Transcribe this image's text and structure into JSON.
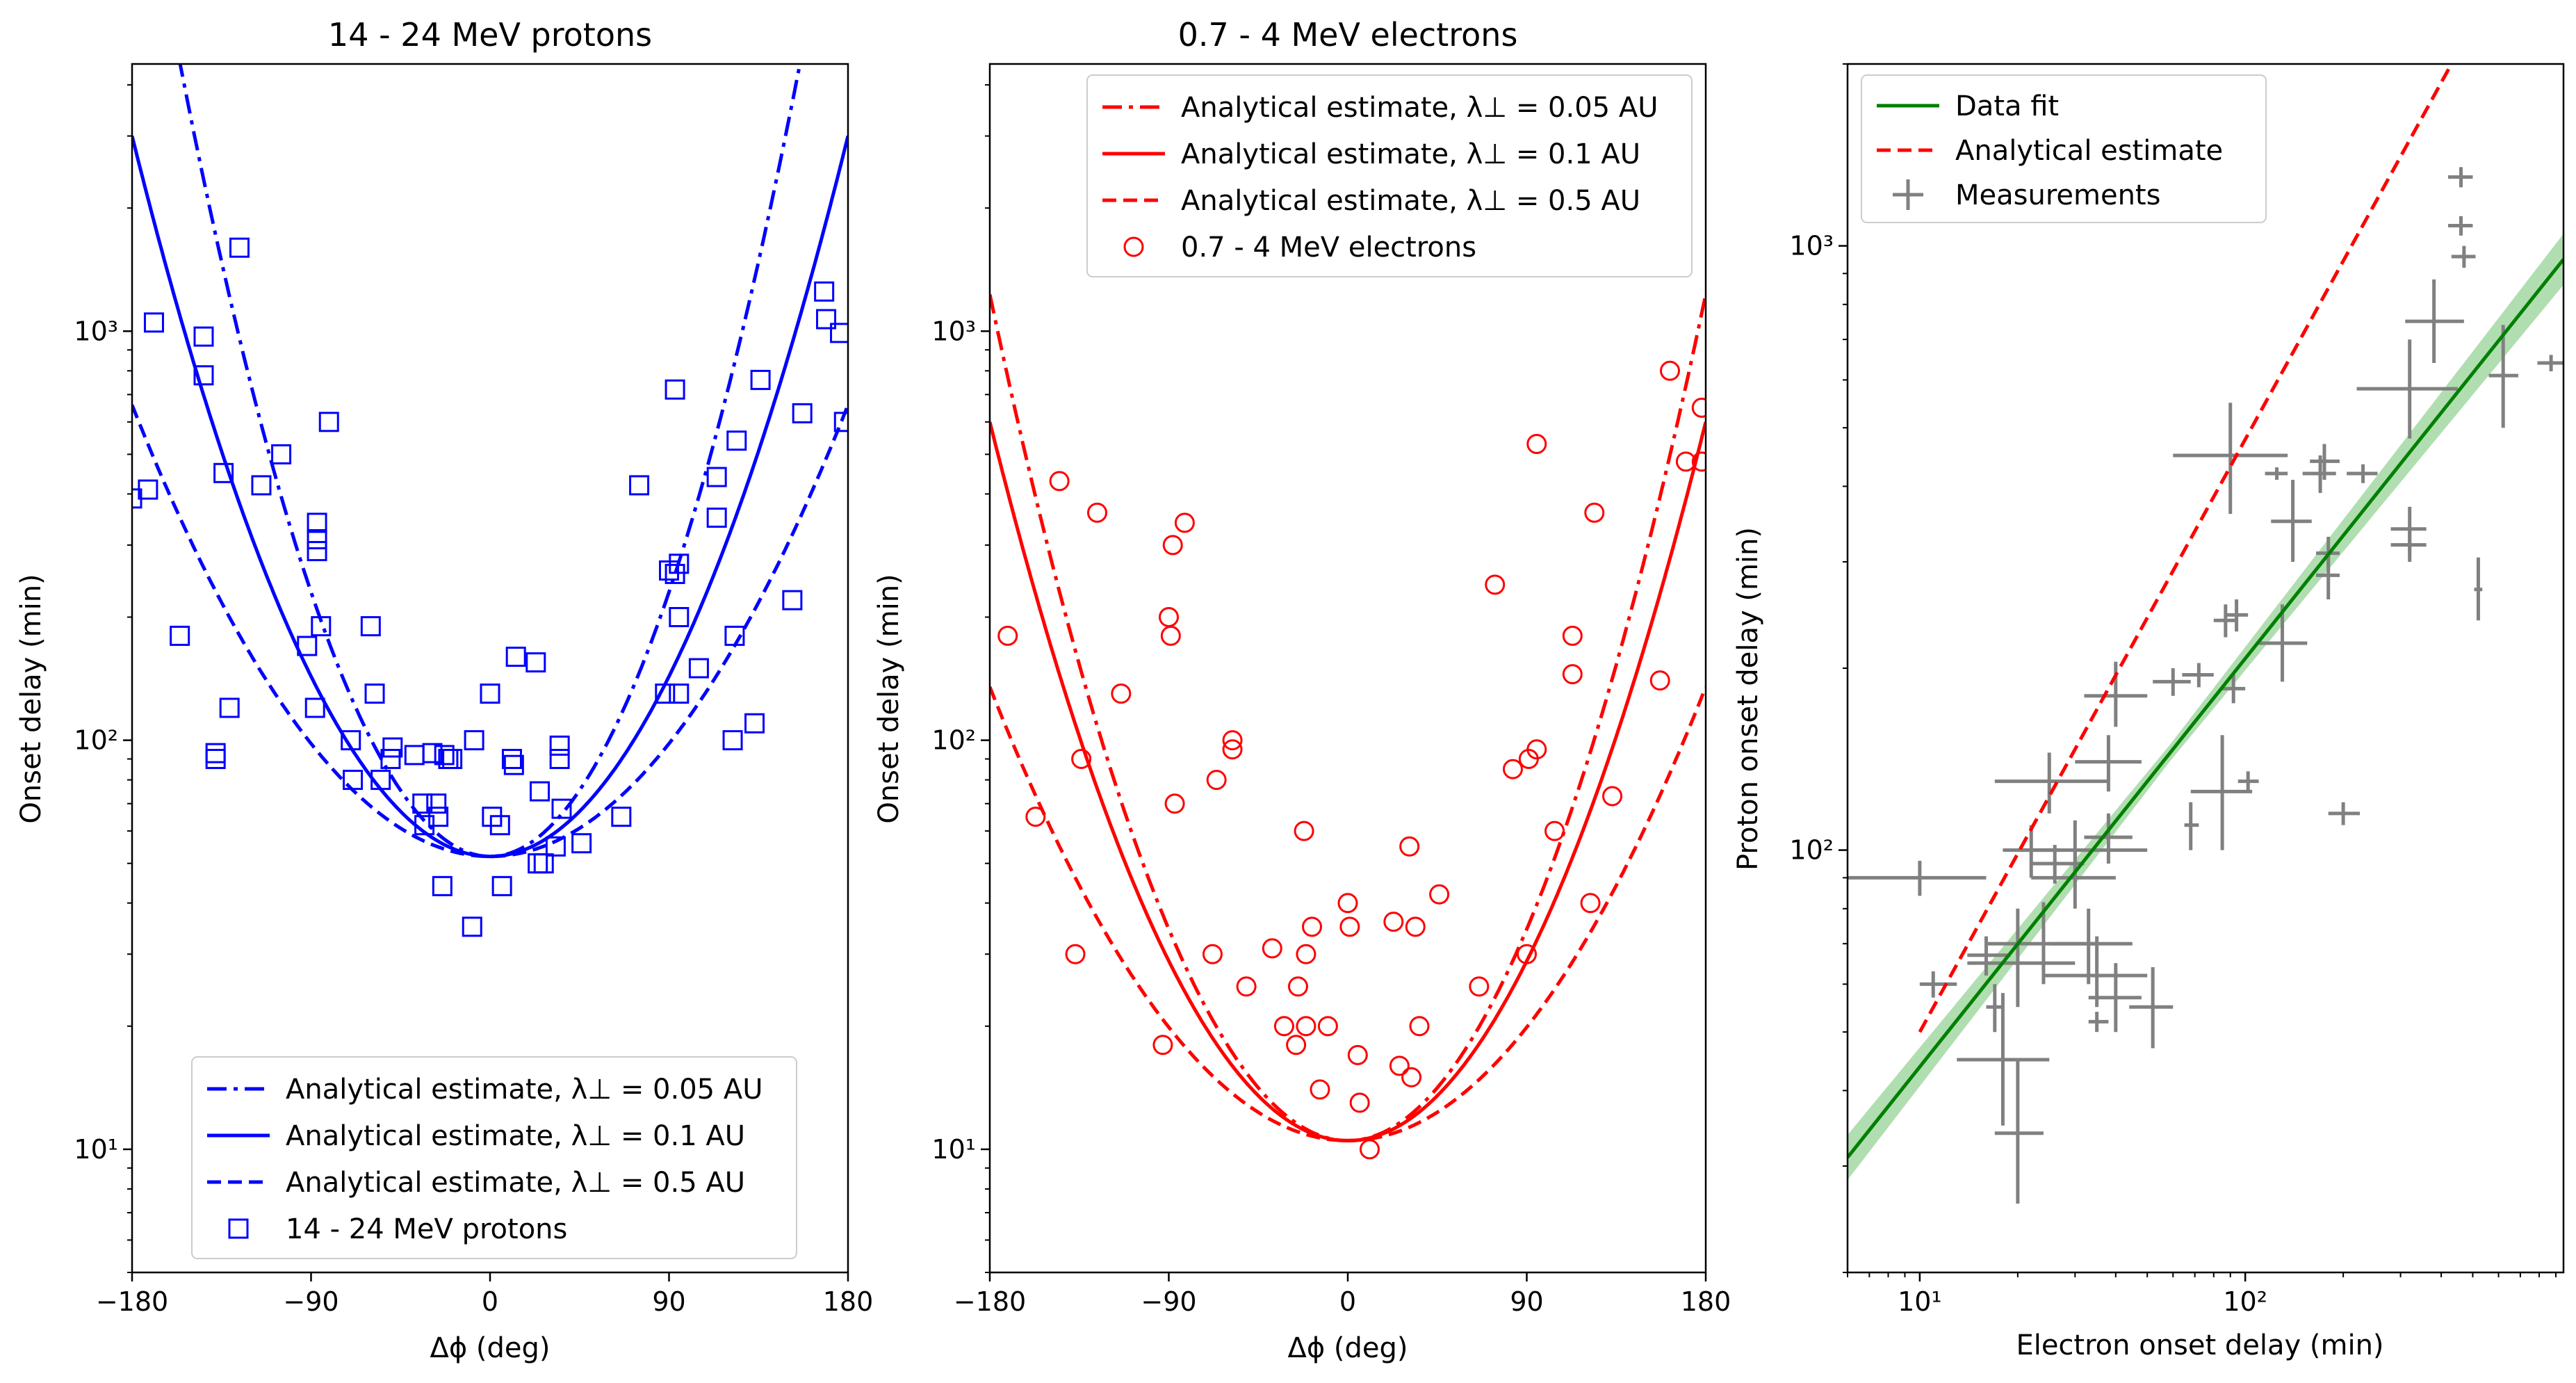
{
  "panels": [
    {
      "title": "14 - 24 MeV protons",
      "xlabel": "Δϕ (deg)",
      "ylabel": "Onset delay (min)",
      "x_ticks": [
        "−180",
        "−90",
        "0",
        "90",
        "180"
      ],
      "y_ticks": [
        "10¹",
        "10²",
        "10³"
      ]
    },
    {
      "title": "0.7 - 4 MeV electrons",
      "xlabel": "Δϕ (deg)",
      "ylabel": "Onset delay (min)",
      "x_ticks": [
        "−180",
        "−90",
        "0",
        "90",
        "180"
      ],
      "y_ticks": [
        "10¹",
        "10²",
        "10³"
      ]
    },
    {
      "title": "",
      "xlabel": "Electron onset delay (min)",
      "ylabel": "Proton onset delay (min)",
      "x_ticks": [
        "10¹",
        "10²"
      ],
      "y_ticks": [
        "10²",
        "10³"
      ]
    }
  ],
  "chart_data": [
    {
      "type": "scatter",
      "title": "14 - 24 MeV protons",
      "xlabel": "Δϕ (deg)",
      "ylabel": "Onset delay (min)",
      "xlim": [
        -180,
        180
      ],
      "ylim": [
        5,
        4500
      ],
      "yscale": "log",
      "legend_placement": "lower-center",
      "colors": {
        "main": "#0000ff"
      },
      "curves": [
        {
          "name": "Analytical estimate, λ⊥ = 0.05 AU",
          "style": "dashdot",
          "y0": 52,
          "ymax": 20000
        },
        {
          "name": "Analytical estimate, λ⊥ = 0.1 AU",
          "style": "solid",
          "y0": 52,
          "ymax": 3000
        },
        {
          "name": "Analytical estimate, λ⊥ = 0.5 AU",
          "style": "dashed",
          "y0": 52,
          "ymax": 660
        }
      ],
      "points_name": "14 - 24 MeV protons",
      "points": [
        [
          -180,
          390
        ],
        [
          -172,
          410
        ],
        [
          -169,
          1050
        ],
        [
          -156,
          180
        ],
        [
          -144,
          970
        ],
        [
          -144,
          780
        ],
        [
          -138,
          90
        ],
        [
          -138,
          93
        ],
        [
          -134,
          450
        ],
        [
          -131,
          120
        ],
        [
          -126,
          1600
        ],
        [
          -115,
          420
        ],
        [
          -105,
          500
        ],
        [
          -92,
          170
        ],
        [
          -88,
          120
        ],
        [
          -87,
          340
        ],
        [
          -87,
          310
        ],
        [
          -87,
          290
        ],
        [
          -85,
          190
        ],
        [
          -81,
          600
        ],
        [
          -70,
          100
        ],
        [
          -69,
          80
        ],
        [
          -60,
          190
        ],
        [
          -58,
          130
        ],
        [
          -55,
          80
        ],
        [
          -50,
          90
        ],
        [
          -49,
          96
        ],
        [
          -38,
          92
        ],
        [
          -34,
          70
        ],
        [
          -33,
          62
        ],
        [
          -29,
          93
        ],
        [
          -27,
          70
        ],
        [
          -26,
          65
        ],
        [
          -24,
          44
        ],
        [
          -23,
          92
        ],
        [
          -21,
          90
        ],
        [
          -19,
          90
        ],
        [
          -9,
          35
        ],
        [
          -8,
          100
        ],
        [
          0,
          130
        ],
        [
          1,
          65
        ],
        [
          5,
          62
        ],
        [
          6,
          44
        ],
        [
          11,
          90
        ],
        [
          12,
          87
        ],
        [
          13,
          160
        ],
        [
          23,
          155
        ],
        [
          24,
          50
        ],
        [
          25,
          75
        ],
        [
          27,
          50
        ],
        [
          33,
          55
        ],
        [
          35,
          97
        ],
        [
          35,
          90
        ],
        [
          36,
          68
        ],
        [
          46,
          56
        ],
        [
          66,
          65
        ],
        [
          75,
          420
        ],
        [
          88,
          130
        ],
        [
          90,
          260
        ],
        [
          93,
          255
        ],
        [
          93,
          720
        ],
        [
          95,
          270
        ],
        [
          95,
          200
        ],
        [
          95,
          130
        ],
        [
          105,
          150
        ],
        [
          114,
          350
        ],
        [
          114,
          440
        ],
        [
          122,
          100
        ],
        [
          123,
          180
        ],
        [
          124,
          540
        ],
        [
          133,
          110
        ],
        [
          136,
          760
        ],
        [
          152,
          220
        ],
        [
          157,
          630
        ],
        [
          168,
          1250
        ],
        [
          169,
          1070
        ],
        [
          176,
          990
        ],
        [
          178,
          600
        ]
      ]
    },
    {
      "type": "scatter",
      "title": "0.7 - 4 MeV electrons",
      "xlabel": "Δϕ (deg)",
      "ylabel": "Onset delay (min)",
      "xlim": [
        -180,
        180
      ],
      "ylim": [
        5,
        4500
      ],
      "yscale": "log",
      "legend_placement": "top-right",
      "colors": {
        "main": "#ff0000"
      },
      "curves": [
        {
          "name": "Analytical estimate, λ⊥ = 0.05 AU",
          "style": "dashdot",
          "y0": 10.5,
          "ymax": 1230
        },
        {
          "name": "Analytical estimate, λ⊥ = 0.1 AU",
          "style": "solid",
          "y0": 10.5,
          "ymax": 600
        },
        {
          "name": "Analytical estimate, λ⊥ = 0.5 AU",
          "style": "dashed",
          "y0": 10.5,
          "ymax": 135
        }
      ],
      "points_name": "0.7 - 4 MeV electrons",
      "points": [
        [
          -171,
          180
        ],
        [
          -157,
          65
        ],
        [
          -145,
          430
        ],
        [
          -137,
          30
        ],
        [
          -134,
          90
        ],
        [
          -126,
          360
        ],
        [
          -114,
          130
        ],
        [
          -93,
          18
        ],
        [
          -90,
          200
        ],
        [
          -89,
          180
        ],
        [
          -88,
          300
        ],
        [
          -87,
          70
        ],
        [
          -82,
          340
        ],
        [
          -66,
          80
        ],
        [
          -68,
          30
        ],
        [
          -58,
          100
        ],
        [
          -58,
          95
        ],
        [
          -51,
          25
        ],
        [
          -38,
          31
        ],
        [
          -32,
          20
        ],
        [
          -26,
          18
        ],
        [
          -25,
          25
        ],
        [
          -22,
          60
        ],
        [
          -21,
          30
        ],
        [
          -21,
          20
        ],
        [
          -18,
          35
        ],
        [
          -14,
          14
        ],
        [
          -10,
          20
        ],
        [
          0,
          40
        ],
        [
          1,
          35
        ],
        [
          5,
          17
        ],
        [
          6,
          13
        ],
        [
          11,
          10
        ],
        [
          23,
          36
        ],
        [
          26,
          16
        ],
        [
          31,
          55
        ],
        [
          32,
          15
        ],
        [
          34,
          35
        ],
        [
          36,
          20
        ],
        [
          46,
          42
        ],
        [
          66,
          25
        ],
        [
          74,
          240
        ],
        [
          83,
          85
        ],
        [
          90,
          30
        ],
        [
          91,
          90
        ],
        [
          95,
          95
        ],
        [
          95,
          530
        ],
        [
          104,
          60
        ],
        [
          113,
          180
        ],
        [
          113,
          145
        ],
        [
          122,
          40
        ],
        [
          124,
          360
        ],
        [
          133,
          73
        ],
        [
          157,
          140
        ],
        [
          162,
          800
        ],
        [
          170,
          480
        ],
        [
          178,
          480
        ],
        [
          178,
          650
        ]
      ]
    },
    {
      "type": "scatter",
      "title": "",
      "xlabel": "Electron onset delay (min)",
      "ylabel": "Proton onset delay (min)",
      "xlim": [
        6,
        950
      ],
      "ylim": [
        20,
        2000
      ],
      "xscale": "log",
      "yscale": "log",
      "legend_placement": "top-left",
      "colors": {
        "fit": "#008000",
        "band": "#90d090",
        "estimate": "#ff0000",
        "measurements": "#808080"
      },
      "fit_line": {
        "name": "Data fit",
        "x": [
          6,
          950
        ],
        "y": [
          31,
          950
        ],
        "band_frac": 0.08
      },
      "estimate_line": {
        "name": "Analytical estimate",
        "x": [
          10,
          430
        ],
        "y": [
          50,
          2000
        ]
      },
      "measurements_name": "Measurements",
      "measurements": [
        {
          "x": 10,
          "y": 90,
          "xerr": [
            6,
            16
          ],
          "yerr": [
            84,
            96
          ]
        },
        {
          "x": 11,
          "y": 60,
          "xerr": [
            10,
            13
          ],
          "yerr": [
            57,
            63
          ]
        },
        {
          "x": 16,
          "y": 67,
          "xerr": [
            14,
            19
          ],
          "yerr": [
            62,
            72
          ]
        },
        {
          "x": 17,
          "y": 55,
          "xerr": [
            16,
            18
          ],
          "yerr": [
            50,
            60
          ]
        },
        {
          "x": 18,
          "y": 45,
          "xerr": [
            13,
            25
          ],
          "yerr": [
            35,
            58
          ]
        },
        {
          "x": 20,
          "y": 34,
          "xerr": [
            17,
            24
          ],
          "yerr": [
            26,
            45
          ]
        },
        {
          "x": 20,
          "y": 65,
          "xerr": [
            14,
            30
          ],
          "yerr": [
            55,
            80
          ]
        },
        {
          "x": 22,
          "y": 100,
          "xerr": [
            18,
            27
          ],
          "yerr": [
            90,
            110
          ]
        },
        {
          "x": 24,
          "y": 70,
          "xerr": [
            16,
            35
          ],
          "yerr": [
            60,
            82
          ]
        },
        {
          "x": 25,
          "y": 130,
          "xerr": [
            17,
            38
          ],
          "yerr": [
            115,
            145
          ]
        },
        {
          "x": 26,
          "y": 95,
          "xerr": [
            22,
            32
          ],
          "yerr": [
            88,
            102
          ]
        },
        {
          "x": 30,
          "y": 90,
          "xerr": [
            22,
            40
          ],
          "yerr": [
            80,
            100
          ]
        },
        {
          "x": 30,
          "y": 100,
          "xerr": [
            20,
            50
          ],
          "yerr": [
            90,
            112
          ]
        },
        {
          "x": 33,
          "y": 70,
          "xerr": [
            25,
            45
          ],
          "yerr": [
            60,
            80
          ]
        },
        {
          "x": 35,
          "y": 62,
          "xerr": [
            24,
            50
          ],
          "yerr": [
            55,
            72
          ]
        },
        {
          "x": 35,
          "y": 52,
          "xerr": [
            33,
            38
          ],
          "yerr": [
            50,
            54
          ]
        },
        {
          "x": 38,
          "y": 105,
          "xerr": [
            32,
            45
          ],
          "yerr": [
            95,
            115
          ]
        },
        {
          "x": 38,
          "y": 140,
          "xerr": [
            30,
            48
          ],
          "yerr": [
            125,
            155
          ]
        },
        {
          "x": 40,
          "y": 180,
          "xerr": [
            32,
            50
          ],
          "yerr": [
            160,
            205
          ]
        },
        {
          "x": 40,
          "y": 57,
          "xerr": [
            33,
            48
          ],
          "yerr": [
            50,
            65
          ]
        },
        {
          "x": 52,
          "y": 55,
          "xerr": [
            44,
            60
          ],
          "yerr": [
            47,
            64
          ]
        },
        {
          "x": 60,
          "y": 190,
          "xerr": [
            52,
            68
          ],
          "yerr": [
            180,
            200
          ]
        },
        {
          "x": 68,
          "y": 110,
          "xerr": [
            65,
            72
          ],
          "yerr": [
            100,
            120
          ]
        },
        {
          "x": 72,
          "y": 195,
          "xerr": [
            64,
            80
          ],
          "yerr": [
            186,
            204
          ]
        },
        {
          "x": 85,
          "y": 125,
          "xerr": [
            68,
            105
          ],
          "yerr": [
            100,
            155
          ]
        },
        {
          "x": 87,
          "y": 240,
          "xerr": [
            80,
            95
          ],
          "yerr": [
            225,
            255
          ]
        },
        {
          "x": 90,
          "y": 450,
          "xerr": [
            60,
            135
          ],
          "yerr": [
            360,
            550
          ]
        },
        {
          "x": 92,
          "y": 185,
          "xerr": [
            85,
            100
          ],
          "yerr": [
            175,
            195
          ]
        },
        {
          "x": 94,
          "y": 245,
          "xerr": [
            87,
            102
          ],
          "yerr": [
            230,
            260
          ]
        },
        {
          "x": 102,
          "y": 130,
          "xerr": [
            95,
            110
          ],
          "yerr": [
            125,
            135
          ]
        },
        {
          "x": 125,
          "y": 420,
          "xerr": [
            115,
            135
          ],
          "yerr": [
            410,
            430
          ]
        },
        {
          "x": 130,
          "y": 220,
          "xerr": [
            110,
            155
          ],
          "yerr": [
            190,
            255
          ]
        },
        {
          "x": 140,
          "y": 350,
          "xerr": [
            120,
            160
          ],
          "yerr": [
            300,
            410
          ]
        },
        {
          "x": 170,
          "y": 420,
          "xerr": [
            150,
            190
          ],
          "yerr": [
            390,
            450
          ]
        },
        {
          "x": 175,
          "y": 440,
          "xerr": [
            158,
            195
          ],
          "yerr": [
            410,
            470
          ]
        },
        {
          "x": 180,
          "y": 310,
          "xerr": [
            165,
            195
          ],
          "yerr": [
            290,
            330
          ]
        },
        {
          "x": 180,
          "y": 285,
          "xerr": [
            165,
            195
          ],
          "yerr": [
            260,
            310
          ]
        },
        {
          "x": 200,
          "y": 115,
          "xerr": [
            180,
            225
          ],
          "yerr": [
            110,
            120
          ]
        },
        {
          "x": 230,
          "y": 420,
          "xerr": [
            205,
            255
          ],
          "yerr": [
            405,
            435
          ]
        },
        {
          "x": 320,
          "y": 580,
          "xerr": [
            220,
            450
          ],
          "yerr": [
            480,
            700
          ]
        },
        {
          "x": 320,
          "y": 340,
          "xerr": [
            280,
            360
          ],
          "yerr": [
            310,
            370
          ]
        },
        {
          "x": 320,
          "y": 320,
          "xerr": [
            280,
            360
          ],
          "yerr": [
            300,
            340
          ]
        },
        {
          "x": 380,
          "y": 750,
          "xerr": [
            310,
            470
          ],
          "yerr": [
            640,
            880
          ]
        },
        {
          "x": 460,
          "y": 1300,
          "xerr": [
            420,
            500
          ],
          "yerr": [
            1250,
            1350
          ]
        },
        {
          "x": 460,
          "y": 1080,
          "xerr": [
            420,
            500
          ],
          "yerr": [
            1040,
            1120
          ]
        },
        {
          "x": 470,
          "y": 960,
          "xerr": [
            430,
            510
          ],
          "yerr": [
            920,
            1000
          ]
        },
        {
          "x": 520,
          "y": 270,
          "xerr": [
            505,
            535
          ],
          "yerr": [
            240,
            305
          ]
        },
        {
          "x": 620,
          "y": 610,
          "xerr": [
            560,
            690
          ],
          "yerr": [
            500,
            740
          ]
        },
        {
          "x": 870,
          "y": 640,
          "xerr": [
            790,
            950
          ],
          "yerr": [
            620,
            660
          ]
        }
      ]
    }
  ]
}
